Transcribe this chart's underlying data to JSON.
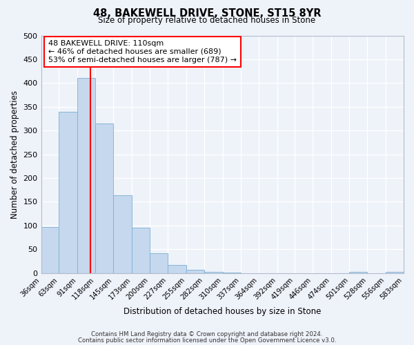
{
  "title": "48, BAKEWELL DRIVE, STONE, ST15 8YR",
  "subtitle": "Size of property relative to detached houses in Stone",
  "xlabel": "Distribution of detached houses by size in Stone",
  "ylabel": "Number of detached properties",
  "bar_color": "#c5d8ed",
  "bar_edge_color": "#7aafd4",
  "background_color": "#eef2f9",
  "grid_color": "#ffffff",
  "bin_edges": [
    36,
    63,
    91,
    118,
    145,
    173,
    200,
    227,
    255,
    282,
    310,
    337,
    364,
    392,
    419,
    446,
    474,
    501,
    528,
    556,
    583
  ],
  "bin_labels": [
    "36sqm",
    "63sqm",
    "91sqm",
    "118sqm",
    "145sqm",
    "173sqm",
    "200sqm",
    "227sqm",
    "255sqm",
    "282sqm",
    "310sqm",
    "337sqm",
    "364sqm",
    "392sqm",
    "419sqm",
    "446sqm",
    "474sqm",
    "501sqm",
    "528sqm",
    "556sqm",
    "583sqm"
  ],
  "bar_heights": [
    97,
    340,
    411,
    315,
    163,
    96,
    41,
    17,
    7,
    2,
    1,
    0,
    0,
    0,
    0,
    0,
    0,
    2,
    0,
    2
  ],
  "red_line_x": 110,
  "ylim": [
    0,
    500
  ],
  "yticks": [
    0,
    50,
    100,
    150,
    200,
    250,
    300,
    350,
    400,
    450,
    500
  ],
  "annotation_title": "48 BAKEWELL DRIVE: 110sqm",
  "annotation_line1": "← 46% of detached houses are smaller (689)",
  "annotation_line2": "53% of semi-detached houses are larger (787) →",
  "footer1": "Contains HM Land Registry data © Crown copyright and database right 2024.",
  "footer2": "Contains public sector information licensed under the Open Government Licence v3.0."
}
